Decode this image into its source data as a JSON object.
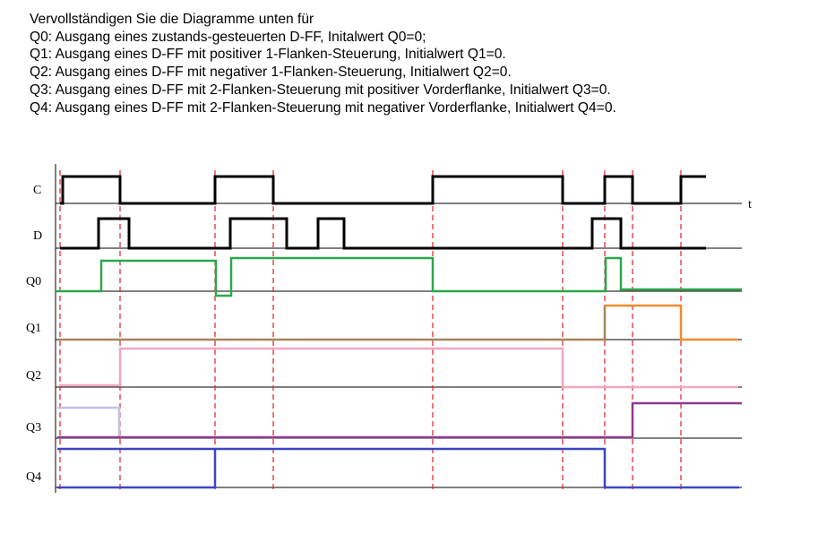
{
  "intro": {
    "line1": "Vervollständigen Sie die Diagramme unten für",
    "line2": "Q0: Ausgang eines zustands-gesteuerten D-FF, Initalwert Q0=0;",
    "line3": "Q1: Ausgang eines D-FF mit positiver 1-Flanken-Steuerung, Initialwert Q1=0.",
    "line4": "Q2: Ausgang eines D-FF mit negativer 1-Flanken-Steuerung, Initialwert Q2=0.",
    "line5": "Q3: Ausgang eines D-FF mit 2-Flanken-Steuerung mit positiver Vorderflanke, Initialwert Q3=0.",
    "line6": "Q4: Ausgang eines D-FF mit 2-Flanken-Steuerung mit negativer Vorderflanke, Initialwert Q4=0."
  },
  "diagram": {
    "time_label": "t",
    "signals": [
      {
        "name": "C",
        "color": "#000000"
      },
      {
        "name": "D",
        "color": "#000000"
      },
      {
        "name": "Q0",
        "color": "#2aa84a"
      },
      {
        "name": "Q1",
        "color": "#a8845a"
      },
      {
        "name": "Q2",
        "color": "#f4a6c0"
      },
      {
        "name": "Q3",
        "color": "#8e3a8e"
      },
      {
        "name": "Q4",
        "color": "#3b46c4"
      }
    ],
    "extra_colors": {
      "q1_high": "#f08a2a",
      "q3_initial": "#c0c0e8",
      "q4_initial": "#3b46c4",
      "guide_lines": "#e02020"
    }
  }
}
